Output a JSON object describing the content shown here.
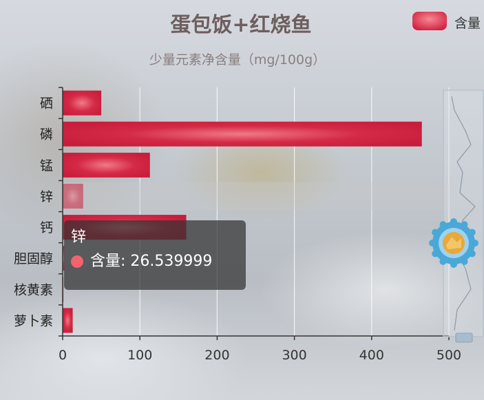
{
  "chart_data": {
    "type": "bar",
    "orientation": "horizontal",
    "title": "蛋包饭+红烧鱼",
    "subtitle": "少量元素净含量（mg/100g）",
    "categories": [
      "硒",
      "磷",
      "锰",
      "锌",
      "钙",
      "胆固醇",
      "核黄素",
      "萝卜素"
    ],
    "series": [
      {
        "name": "含量",
        "values": [
          50,
          465,
          113,
          26.539999,
          160,
          2,
          1,
          13
        ]
      }
    ],
    "xlim": [
      0,
      500
    ],
    "x_ticks": [
      "0",
      "100",
      "200",
      "300",
      "400",
      "500"
    ],
    "grid": true,
    "legend": "top-right",
    "bar_color": "#d42a46",
    "highlight_category": "锌"
  },
  "tooltip": {
    "title": "锌",
    "series_name": "含量",
    "value": "26.539999",
    "line": "含量: 26.539999"
  },
  "dataZoom": {
    "handle_icon": "gear-icon"
  }
}
